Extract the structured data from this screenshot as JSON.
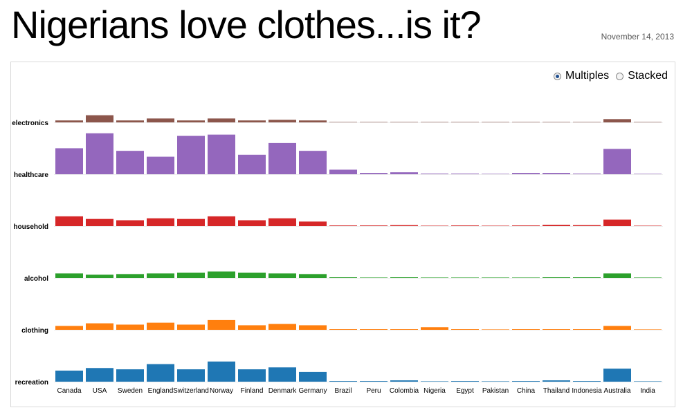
{
  "header": {
    "title": "Nigerians love clothes...is it?",
    "date": "November 14, 2013"
  },
  "controls": {
    "options": [
      {
        "label": "Multiples",
        "selected": true
      },
      {
        "label": "Stacked",
        "selected": false
      }
    ]
  },
  "chart_data": {
    "type": "bar",
    "layout": "small-multiples",
    "categories": [
      "Canada",
      "USA",
      "Sweden",
      "England",
      "Switzerland",
      "Norway",
      "Finland",
      "Denmark",
      "Germany",
      "Brazil",
      "Peru",
      "Colombia",
      "Nigeria",
      "Egypt",
      "Pakistan",
      "China",
      "Thailand",
      "Indonesia",
      "Australia",
      "India"
    ],
    "series": [
      {
        "name": "electronics",
        "color": "#8c564b",
        "values": [
          3,
          11,
          3,
          6,
          3,
          6,
          3,
          4,
          3,
          0.2,
          0.2,
          0.2,
          0.1,
          0.1,
          0.1,
          0.3,
          0.4,
          0.2,
          5,
          0.1
        ]
      },
      {
        "name": "healthcare",
        "color": "#9467bd",
        "values": [
          40,
          63,
          36,
          27,
          59,
          61,
          30,
          48,
          36,
          7,
          2,
          3,
          1,
          1,
          0.5,
          2,
          2,
          1,
          39,
          0.5
        ]
      },
      {
        "name": "household",
        "color": "#d62728",
        "values": [
          15,
          11,
          9,
          12,
          11,
          15,
          9,
          12,
          7,
          1,
          1,
          1.5,
          0.5,
          1,
          0.5,
          1,
          2,
          1.5,
          10,
          0.5
        ]
      },
      {
        "name": "alcohol",
        "color": "#2ca02c",
        "values": [
          7,
          5,
          6,
          7,
          8,
          10,
          8,
          7,
          6,
          1,
          0.5,
          1,
          0.2,
          0.2,
          0.1,
          0.5,
          1,
          1,
          7,
          0.2
        ]
      },
      {
        "name": "clothing",
        "color": "#ff7f0e",
        "values": [
          6,
          10,
          8,
          11,
          8,
          15,
          7,
          9,
          7,
          1,
          1,
          1,
          4,
          1,
          0.5,
          1,
          1,
          1,
          6,
          0.3
        ]
      },
      {
        "name": "recreation",
        "color": "#1f77b4",
        "values": [
          17,
          21,
          19,
          27,
          19,
          31,
          19,
          22,
          15,
          1,
          1,
          2,
          0.5,
          1,
          0.3,
          1,
          2,
          1,
          20,
          0.3
        ]
      }
    ],
    "xlabel": "",
    "ylabel": "",
    "grid": false,
    "legend": "none"
  }
}
